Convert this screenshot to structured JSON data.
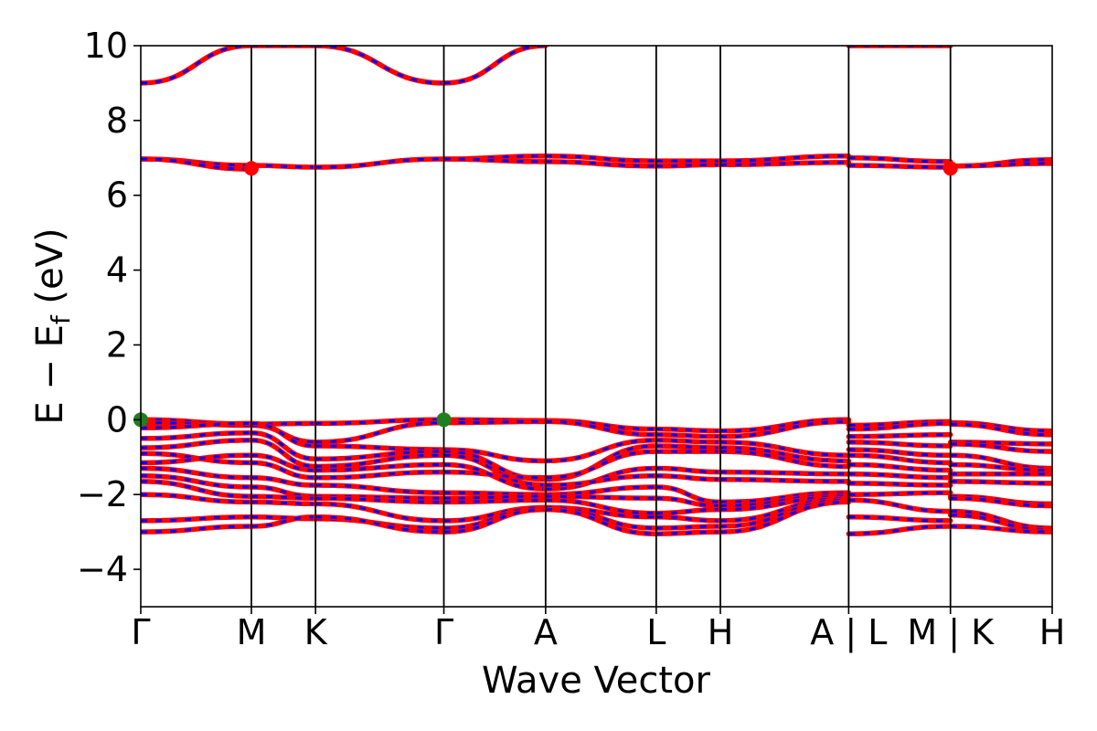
{
  "chart_data": {
    "type": "line",
    "title": "",
    "xlabel": "Wave Vector",
    "ylabel": "E − E_f (eV)",
    "ylabel_main": "E − E",
    "ylabel_sub": "f",
    "ylabel_unit": " (eV)",
    "ylim": [
      -5,
      10
    ],
    "yticks": [
      -4,
      -2,
      0,
      2,
      4,
      6,
      8,
      10
    ],
    "ytick_labels": [
      "−4",
      "−2",
      "0",
      "2",
      "4",
      "6",
      "8",
      "10"
    ],
    "grid": false,
    "legend": "none",
    "kpath": {
      "positions": [
        0,
        1.0,
        1.58,
        2.74,
        3.66,
        4.66,
        5.24,
        6.4,
        7.32,
        8.24
      ],
      "labels": [
        "Γ",
        "M",
        "K",
        "Γ",
        "A",
        "L",
        "H",
        "A | L",
        "M | K",
        "H"
      ],
      "xmax": 8.24
    },
    "spin_colors": {
      "spin_up": "#ff0000",
      "spin_down": "#0000ff"
    },
    "marker_colors": {
      "vbm": "#1f7f1f",
      "cbm": "#ff0000"
    },
    "bands": [
      {
        "segment": 0,
        "values": [
          [
            9.0,
            10.0
          ]
        ]
      },
      {
        "segment": 0,
        "values": [
          [
            6.97,
            6.8
          ],
          [
            6.97,
            6.7
          ]
        ]
      },
      {
        "segment": 0,
        "values": [
          [
            0.0,
            -0.12
          ],
          [
            -0.08,
            -0.15
          ],
          [
            -0.22,
            -0.1
          ],
          [
            -0.5,
            -0.35
          ],
          [
            -0.75,
            -0.55
          ],
          [
            -0.9,
            -1.15
          ],
          [
            -1.15,
            -0.95
          ],
          [
            -1.3,
            -1.55
          ],
          [
            -1.5,
            -1.8
          ],
          [
            -1.65,
            -2.05
          ],
          [
            -2.0,
            -2.2
          ],
          [
            -2.7,
            -2.6
          ],
          [
            -3.0,
            -2.85
          ]
        ]
      },
      {
        "segment": 1,
        "values": [
          [
            10.0,
            10.0
          ]
        ]
      },
      {
        "segment": 1,
        "values": [
          [
            6.8,
            6.75
          ]
        ]
      },
      {
        "segment": 1,
        "values": [
          [
            -0.12,
            -0.1
          ],
          [
            -0.15,
            -0.6
          ],
          [
            -0.1,
            -0.7
          ],
          [
            -0.35,
            -1.05
          ],
          [
            -0.55,
            -1.25
          ],
          [
            -1.15,
            -1.55
          ],
          [
            -0.95,
            -1.35
          ],
          [
            -1.55,
            -1.75
          ],
          [
            -1.8,
            -2.05
          ],
          [
            -2.05,
            -2.1
          ],
          [
            -2.2,
            -2.25
          ],
          [
            -2.6,
            -2.65
          ],
          [
            -2.85,
            -2.6
          ]
        ]
      },
      {
        "segment": 2,
        "values": [
          [
            10.0,
            9.0
          ]
        ]
      },
      {
        "segment": 2,
        "values": [
          [
            6.75,
            6.97
          ]
        ]
      },
      {
        "segment": 2,
        "values": [
          [
            -0.1,
            0.0
          ],
          [
            -0.6,
            -0.08
          ],
          [
            -0.7,
            -0.8
          ],
          [
            -1.05,
            -0.85
          ],
          [
            -1.25,
            -0.95
          ],
          [
            -1.55,
            -1.4
          ],
          [
            -1.35,
            -1.2
          ],
          [
            -1.75,
            -1.95
          ],
          [
            -2.05,
            -2.1
          ],
          [
            -2.1,
            -2.2
          ],
          [
            -2.25,
            -2.7
          ],
          [
            -2.65,
            -2.9
          ],
          [
            -2.6,
            -3.0
          ]
        ]
      },
      {
        "segment": 3,
        "values": [
          [
            9.0,
            10.0
          ]
        ]
      },
      {
        "segment": 3,
        "values": [
          [
            6.97,
            7.05
          ],
          [
            6.97,
            6.9
          ]
        ]
      },
      {
        "segment": 3,
        "values": [
          [
            0.0,
            -0.02
          ],
          [
            -0.08,
            -0.05
          ],
          [
            -0.8,
            -1.1
          ],
          [
            -0.85,
            -1.6
          ],
          [
            -0.95,
            -1.75
          ],
          [
            -1.4,
            -1.55
          ],
          [
            -1.2,
            -1.85
          ],
          [
            -1.95,
            -2.0
          ],
          [
            -2.1,
            -2.05
          ],
          [
            -2.2,
            -2.15
          ],
          [
            -2.7,
            -2.35
          ],
          [
            -2.9,
            -2.35
          ],
          [
            -3.0,
            -2.4
          ]
        ]
      },
      {
        "segment": 4,
        "values": [
          [
            7.05,
            6.92
          ],
          [
            6.9,
            6.78
          ]
        ]
      },
      {
        "segment": 4,
        "values": [
          [
            -0.02,
            -0.25
          ],
          [
            -0.05,
            -0.4
          ],
          [
            -1.1,
            -0.55
          ],
          [
            -1.6,
            -0.7
          ],
          [
            -1.55,
            -0.85
          ],
          [
            -1.85,
            -1.3
          ],
          [
            -1.75,
            -1.5
          ],
          [
            -2.0,
            -1.8
          ],
          [
            -2.05,
            -2.1
          ],
          [
            -2.15,
            -2.5
          ],
          [
            -2.35,
            -2.6
          ],
          [
            -2.35,
            -2.9
          ],
          [
            -2.4,
            -3.05
          ]
        ]
      },
      {
        "segment": 5,
        "values": [
          [
            6.92,
            6.92
          ],
          [
            6.78,
            6.82
          ]
        ]
      },
      {
        "segment": 5,
        "values": [
          [
            -0.25,
            -0.3
          ],
          [
            -0.4,
            -0.45
          ],
          [
            -0.55,
            -0.6
          ],
          [
            -0.7,
            -0.75
          ],
          [
            -0.85,
            -0.85
          ],
          [
            -1.3,
            -1.4
          ],
          [
            -1.5,
            -1.6
          ],
          [
            -1.8,
            -2.2
          ],
          [
            -2.1,
            -2.3
          ],
          [
            -2.5,
            -2.4
          ],
          [
            -2.6,
            -2.7
          ],
          [
            -2.9,
            -2.85
          ],
          [
            -3.05,
            -3.0
          ]
        ]
      },
      {
        "segment": 6,
        "values": [
          [
            6.92,
            7.05
          ],
          [
            6.82,
            6.88
          ]
        ]
      },
      {
        "segment": 6,
        "values": [
          [
            -0.3,
            0.0
          ],
          [
            -0.45,
            -0.05
          ],
          [
            -0.6,
            -0.95
          ],
          [
            -0.75,
            -1.1
          ],
          [
            -0.85,
            -1.25
          ],
          [
            -1.4,
            -1.45
          ],
          [
            -1.6,
            -1.65
          ],
          [
            -2.2,
            -1.95
          ],
          [
            -2.3,
            -2.0
          ],
          [
            -2.4,
            -2.05
          ],
          [
            -2.7,
            -2.1
          ],
          [
            -2.85,
            -2.15
          ],
          [
            -3.0,
            -2.2
          ]
        ]
      },
      {
        "segment": 7,
        "values": [
          [
            10.0,
            10.0
          ]
        ]
      },
      {
        "segment": 7,
        "values": [
          [
            7.0,
            6.9
          ],
          [
            6.8,
            6.75
          ]
        ]
      },
      {
        "segment": 7,
        "values": [
          [
            -0.15,
            -0.05
          ],
          [
            -0.25,
            -0.1
          ],
          [
            -0.45,
            -0.4
          ],
          [
            -0.6,
            -0.7
          ],
          [
            -0.8,
            -0.95
          ],
          [
            -0.95,
            -1.15
          ],
          [
            -1.2,
            -1.35
          ],
          [
            -1.45,
            -1.55
          ],
          [
            -1.7,
            -1.75
          ],
          [
            -2.0,
            -1.95
          ],
          [
            -2.15,
            -2.45
          ],
          [
            -2.6,
            -2.7
          ],
          [
            -3.05,
            -2.85
          ]
        ]
      },
      {
        "segment": 8,
        "values": [
          [
            6.78,
            6.95
          ],
          [
            6.78,
            6.85
          ]
        ]
      },
      {
        "segment": 8,
        "values": [
          [
            -0.08,
            -0.3
          ],
          [
            -0.12,
            -0.4
          ],
          [
            -0.6,
            -0.65
          ],
          [
            -0.65,
            -0.85
          ],
          [
            -0.95,
            -1.3
          ],
          [
            -1.2,
            -1.35
          ],
          [
            -1.45,
            -1.45
          ],
          [
            -1.65,
            -1.7
          ],
          [
            -2.05,
            -2.25
          ],
          [
            -2.1,
            -2.3
          ],
          [
            -2.45,
            -2.9
          ],
          [
            -2.55,
            -2.95
          ],
          [
            -2.85,
            -3.0
          ]
        ]
      }
    ],
    "markers": [
      {
        "kind": "vbm",
        "x": 0.0,
        "y": 0.0
      },
      {
        "kind": "vbm",
        "x": 2.74,
        "y": 0.0
      },
      {
        "kind": "cbm",
        "x": 1.0,
        "y": 6.72
      },
      {
        "kind": "cbm",
        "x": 7.32,
        "y": 6.72
      }
    ]
  }
}
